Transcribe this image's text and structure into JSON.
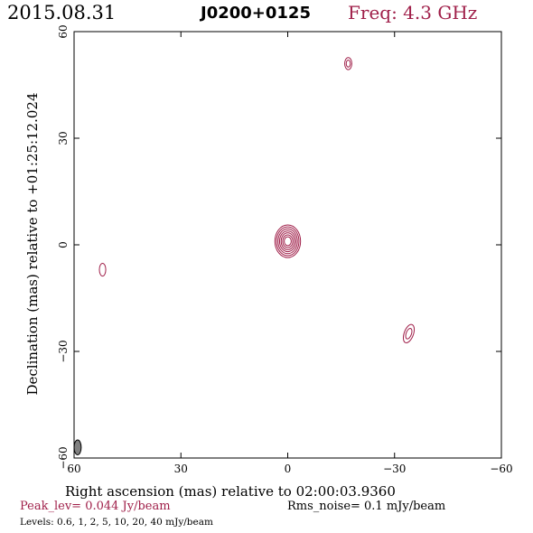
{
  "header": {
    "date": "2015.08.31",
    "source": "J0200+0125",
    "freq": "Freq: 4.3 GHz"
  },
  "footer": {
    "peak": "Peak_lev=  0.044 Jy/beam",
    "rms": "Rms_noise=  0.1 mJy/beam",
    "levels": "Levels: 0.6,   1,   2,   5,  10,  20,  40 mJy/beam"
  },
  "chart_data": {
    "type": "contour",
    "xlabel": "Right ascension (mas) relative to 02:00:03.9360",
    "ylabel": "Declination (mas) relative to +01:25:12.024",
    "xlim": [
      60,
      -60
    ],
    "ylim": [
      -60,
      60
    ],
    "x_ticks": [
      60,
      30,
      0,
      -30,
      -60
    ],
    "y_ticks": [
      -60,
      -30,
      0,
      30,
      60
    ],
    "x_tick_labels": [
      "60",
      "30",
      "0",
      "−30",
      "−60"
    ],
    "y_tick_labels": [
      "−60",
      "−30",
      "0",
      "30",
      "60"
    ],
    "contour_color": "#a0204a",
    "contour_levels_mJy": [
      0.6,
      1,
      2,
      5,
      10,
      20,
      40
    ],
    "components": [
      {
        "x": 0,
        "y": 1,
        "levels": 7,
        "sx": 3.6,
        "sy": 4.6,
        "angle": 0
      },
      {
        "x": -17,
        "y": 51,
        "levels": 2,
        "sx": 1.0,
        "sy": 1.7,
        "angle": 0
      },
      {
        "x": 52,
        "y": -7,
        "levels": 1,
        "sx": 0.9,
        "sy": 1.8,
        "angle": 0
      },
      {
        "x": -34,
        "y": -25,
        "levels": 2,
        "sx": 1.3,
        "sy": 2.7,
        "angle": 20
      }
    ],
    "beam": {
      "x": 59,
      "y": -57,
      "major": 4.2,
      "minor": 2.0,
      "angle": 0,
      "fill": "#808080"
    }
  }
}
